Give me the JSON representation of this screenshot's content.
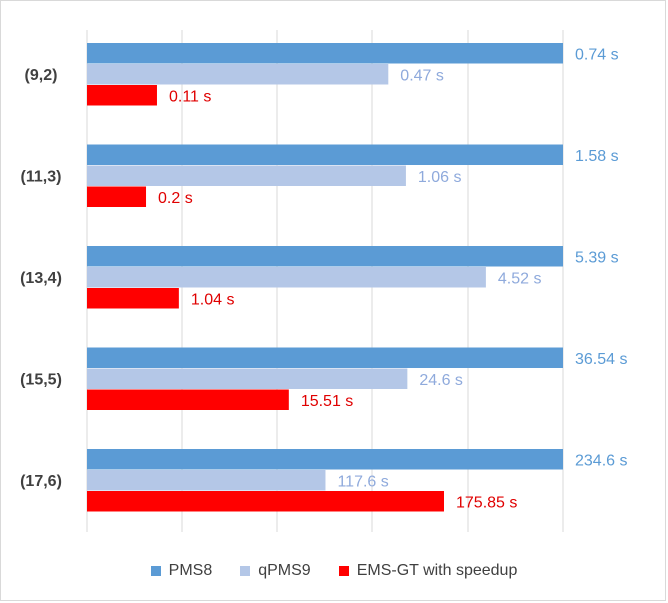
{
  "chart_data": {
    "type": "bar",
    "orientation": "horizontal",
    "categories": [
      "(9,2)",
      "(11,3)",
      "(13,4)",
      "(15,5)",
      "(17,6)"
    ],
    "series": [
      {
        "name": "PMS8",
        "color": "#5b9bd5",
        "label_color": "#5b9bd5",
        "values": [
          0.74,
          1.58,
          5.39,
          36.54,
          234.6
        ],
        "labels": [
          "0.74 s",
          "1.58 s",
          "5.39 s",
          "36.54 s",
          "234.6 s"
        ]
      },
      {
        "name": "qPMS9",
        "color": "#b4c7e7",
        "label_color": "#8faadc",
        "values": [
          0.47,
          1.06,
          4.52,
          24.6,
          117.6
        ],
        "labels": [
          "0.47 s",
          "1.06 s",
          "4.52 s",
          "24.6 s",
          "117.6 s"
        ]
      },
      {
        "name": "EMS-GT with speedup",
        "color": "#ff0000",
        "label_color": "#e00000",
        "values": [
          0.11,
          0.2,
          1.04,
          15.51,
          175.85
        ],
        "labels": [
          "0.11 s",
          "0.2 s",
          "1.04 s",
          "15.51 s",
          "175.85 s"
        ]
      }
    ],
    "bar_fraction_of_axis": [
      [
        1.0,
        0.633,
        0.147
      ],
      [
        1.0,
        0.67,
        0.124
      ],
      [
        1.0,
        0.838,
        0.193
      ],
      [
        1.0,
        0.673,
        0.424
      ],
      [
        1.0,
        0.501,
        0.75
      ]
    ],
    "gridlines": "vertical",
    "axis_tick_labels_shown": false,
    "legend_position": "bottom",
    "title": "",
    "xlabel": "",
    "ylabel": ""
  }
}
